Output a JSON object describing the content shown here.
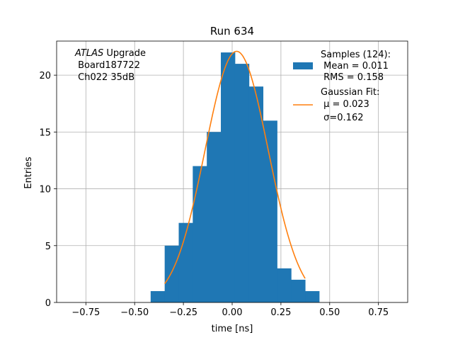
{
  "chart_data": {
    "type": "bar",
    "title": "Run 634",
    "xlabel": "time [ns]",
    "ylabel": "Entries",
    "xlim": [
      -0.9,
      0.9
    ],
    "ylim": [
      0,
      23
    ],
    "grid": true,
    "xticks": [
      -0.75,
      -0.5,
      -0.25,
      0.0,
      0.25,
      0.5,
      0.75
    ],
    "xtick_labels": [
      "−0.75",
      "−0.50",
      "−0.25",
      "0.00",
      "0.25",
      "0.50",
      "0.75"
    ],
    "yticks": [
      0,
      5,
      10,
      15,
      20
    ],
    "ytick_labels": [
      "0",
      "5",
      "10",
      "15",
      "20"
    ],
    "histogram": {
      "name_lines": [
        "Samples (124):",
        " Mean = 0.011",
        " RMS = 0.158"
      ],
      "color": "#1f77b4",
      "bin_edges": [
        -0.418,
        -0.346,
        -0.274,
        -0.202,
        -0.13,
        -0.058,
        0.014,
        0.086,
        0.158,
        0.23,
        0.302,
        0.374,
        0.446
      ],
      "counts": [
        1,
        5,
        7,
        12,
        15,
        22,
        21,
        19,
        16,
        3,
        2,
        1
      ]
    },
    "fit": {
      "name_lines": [
        "Gaussian Fit:",
        " μ = 0.023",
        " σ=0.162"
      ],
      "color": "#ff7f0e",
      "mu": 0.023,
      "sigma": 0.162,
      "amplitude": 22.1,
      "x_range": [
        -0.346,
        0.374
      ]
    },
    "annotation": {
      "italic": "ATLAS",
      "rest": " Upgrade",
      "lines": [
        " Board187722",
        " Ch022 35dB"
      ]
    },
    "legend_position": "upper right"
  }
}
